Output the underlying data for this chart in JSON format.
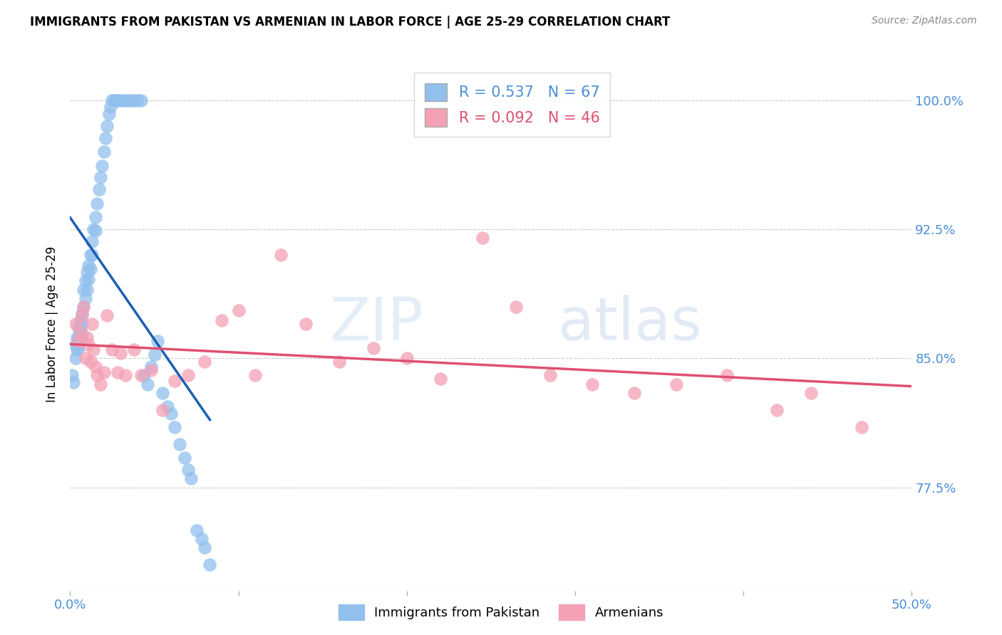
{
  "title": "IMMIGRANTS FROM PAKISTAN VS ARMENIAN IN LABOR FORCE | AGE 25-29 CORRELATION CHART",
  "source": "Source: ZipAtlas.com",
  "ylabel": "In Labor Force | Age 25-29",
  "ytick_labels": [
    "77.5%",
    "85.0%",
    "92.5%",
    "100.0%"
  ],
  "ytick_values": [
    0.775,
    0.85,
    0.925,
    1.0
  ],
  "xlim": [
    0.0,
    0.5
  ],
  "ylim": [
    0.715,
    1.025
  ],
  "legend_r1": "R = 0.537",
  "legend_n1": "N = 67",
  "legend_r2": "R = 0.092",
  "legend_n2": "N = 46",
  "color_pakistan": "#92c0ed",
  "color_armenian": "#f4a0b5",
  "color_pakistan_line": "#1a5fb4",
  "color_armenian_line": "#e05070",
  "color_ticks": "#4a90d9",
  "pakistan_x": [
    0.001,
    0.002,
    0.003,
    0.003,
    0.004,
    0.004,
    0.005,
    0.005,
    0.005,
    0.006,
    0.006,
    0.006,
    0.007,
    0.007,
    0.007,
    0.008,
    0.008,
    0.009,
    0.009,
    0.01,
    0.01,
    0.011,
    0.011,
    0.012,
    0.012,
    0.013,
    0.013,
    0.014,
    0.015,
    0.015,
    0.016,
    0.017,
    0.018,
    0.019,
    0.02,
    0.021,
    0.022,
    0.023,
    0.024,
    0.025,
    0.026,
    0.027,
    0.028,
    0.03,
    0.032,
    0.034,
    0.036,
    0.038,
    0.04,
    0.042,
    0.044,
    0.046,
    0.048,
    0.05,
    0.052,
    0.055,
    0.058,
    0.06,
    0.062,
    0.065,
    0.068,
    0.07,
    0.072,
    0.075,
    0.078,
    0.08,
    0.083
  ],
  "pakistan_y": [
    0.84,
    0.836,
    0.858,
    0.85,
    0.862,
    0.855,
    0.868,
    0.862,
    0.856,
    0.872,
    0.866,
    0.86,
    0.876,
    0.87,
    0.864,
    0.89,
    0.88,
    0.895,
    0.885,
    0.9,
    0.89,
    0.904,
    0.896,
    0.91,
    0.902,
    0.918,
    0.91,
    0.925,
    0.932,
    0.924,
    0.94,
    0.948,
    0.955,
    0.962,
    0.97,
    0.978,
    0.985,
    0.992,
    0.996,
    1.0,
    1.0,
    1.0,
    1.0,
    1.0,
    1.0,
    1.0,
    1.0,
    1.0,
    1.0,
    1.0,
    0.84,
    0.835,
    0.845,
    0.852,
    0.86,
    0.83,
    0.822,
    0.818,
    0.81,
    0.8,
    0.792,
    0.785,
    0.78,
    0.75,
    0.745,
    0.74,
    0.73
  ],
  "armenian_x": [
    0.003,
    0.005,
    0.006,
    0.007,
    0.008,
    0.009,
    0.01,
    0.011,
    0.012,
    0.013,
    0.014,
    0.015,
    0.016,
    0.018,
    0.02,
    0.022,
    0.025,
    0.028,
    0.03,
    0.033,
    0.038,
    0.042,
    0.048,
    0.055,
    0.062,
    0.07,
    0.08,
    0.09,
    0.1,
    0.11,
    0.125,
    0.14,
    0.16,
    0.18,
    0.2,
    0.22,
    0.245,
    0.265,
    0.285,
    0.31,
    0.335,
    0.36,
    0.39,
    0.42,
    0.44,
    0.47
  ],
  "armenian_y": [
    0.87,
    0.86,
    0.865,
    0.875,
    0.88,
    0.85,
    0.862,
    0.858,
    0.848,
    0.87,
    0.855,
    0.845,
    0.84,
    0.835,
    0.842,
    0.875,
    0.855,
    0.842,
    0.853,
    0.84,
    0.855,
    0.84,
    0.843,
    0.82,
    0.837,
    0.84,
    0.848,
    0.872,
    0.878,
    0.84,
    0.91,
    0.87,
    0.848,
    0.856,
    0.85,
    0.838,
    0.92,
    0.88,
    0.84,
    0.835,
    0.83,
    0.835,
    0.84,
    0.82,
    0.83,
    0.81
  ]
}
